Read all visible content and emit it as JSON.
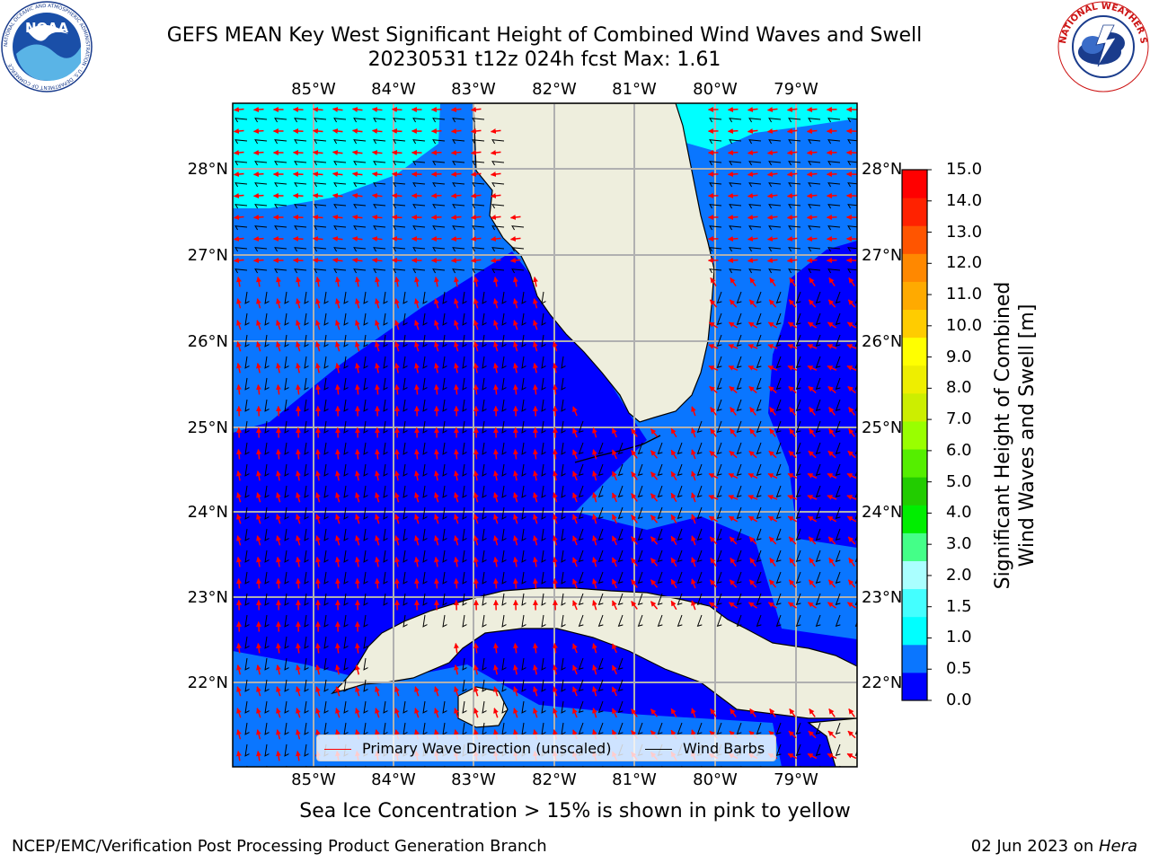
{
  "header": {
    "title_line1": "GEFS MEAN Key West Significant Height of Combined Wind Waves and Swell",
    "title_line2": "20230531 t12z 024h fcst   Max: 1.61"
  },
  "map": {
    "lon_labels": [
      "85°W",
      "84°W",
      "83°W",
      "82°W",
      "81°W",
      "80°W",
      "79°W"
    ],
    "lat_labels": [
      "28°N",
      "27°N",
      "26°N",
      "25°N",
      "24°N",
      "23°N",
      "22°N"
    ],
    "colors": {
      "level_0_0_5": "#0000ff",
      "level_0_5_1_0": "#0a76ff",
      "level_1_0_1_5": "#00ffff",
      "land": "#eeeedd",
      "grid": "#b0b0b0",
      "wave_arrow": "#ff0000",
      "wind_barb": "#000000"
    }
  },
  "colorbar": {
    "label_line1": "Significant Height of Combined",
    "label_line2": "Wind Waves and Swell [m]",
    "ticks": [
      "15.0",
      "14.0",
      "13.0",
      "12.0",
      "11.0",
      "10.0",
      "9.0",
      "8.0",
      "7.0",
      "6.0",
      "5.0",
      "4.0",
      "3.0",
      "2.0",
      "1.5",
      "1.0",
      "0.5",
      "0.0"
    ],
    "colors": [
      "#0000ff",
      "#0a76ff",
      "#00ffff",
      "#44ffff",
      "#aaffff",
      "#44ff88",
      "#00ee00",
      "#22cc00",
      "#55ee00",
      "#99ff00",
      "#ccee00",
      "#eeee00",
      "#ffff00",
      "#ffcc00",
      "#ffaa00",
      "#ff8800",
      "#ff5500",
      "#ff2200",
      "#ff0000"
    ]
  },
  "legend": {
    "wave_label": "Primary Wave Direction (unscaled)",
    "wind_label": "Wind Barbs"
  },
  "footer": {
    "note": "Sea Ice Concentration > 15% is shown in pink to yellow",
    "left": "NCEP/EMC/Verification Post Processing Product Generation Branch",
    "right_date": "02 Jun 2023 on ",
    "right_host": "Hera"
  },
  "logos": {
    "noaa": "NOAA",
    "noaa_ring": "NATIONAL OCEANIC AND ATMOSPHERIC ADMINISTRATION · U.S. DEPARTMENT OF COMMERCE",
    "nws_ring": "NATIONAL WEATHER SERVICE"
  }
}
